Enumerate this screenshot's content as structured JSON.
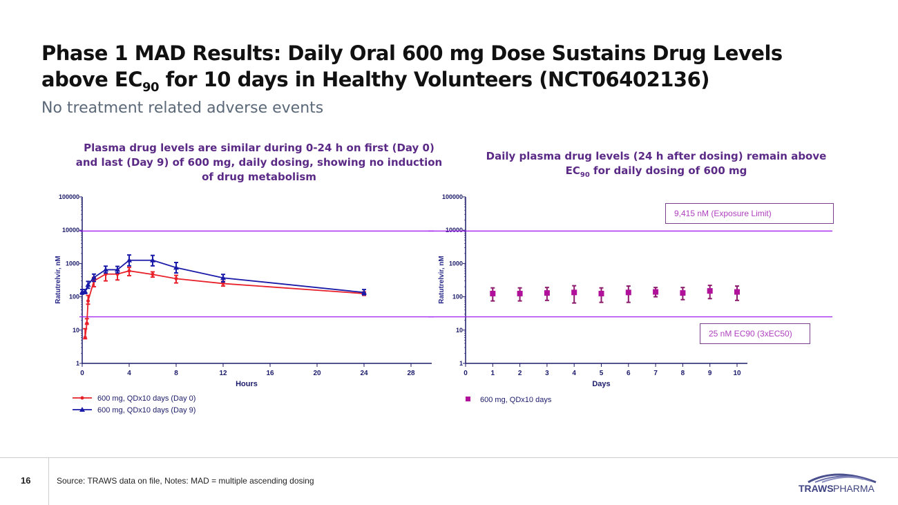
{
  "title_line1": "Phase 1 MAD Results: Daily Oral 600 mg Dose Sustains Drug Levels",
  "title_line2_a": "above EC",
  "title_line2_sub": "90",
  "title_line2_b": " for 10 days in Healthy Volunteers (NCT06402136)",
  "subtitle": "No treatment related adverse events",
  "footer": {
    "page": "16",
    "source": "Source: TRAWS data on file, Notes: MAD = multiple ascending dosing",
    "logo": "TRAWS PHARMA"
  },
  "colors": {
    "ref_line": "#a020f0",
    "day0": "#e8202a",
    "day9": "#1a1aa8",
    "daily": "#b0109a",
    "title": "#5b2a86"
  },
  "chart_data": [
    {
      "type": "line",
      "title": "Plasma drug levels are similar during 0-24 h on first (Day 0) and last (Day 9) of 600 mg, daily dosing, showing no induction of drug metabolism",
      "xlabel": "Hours",
      "ylabel": "Ratutrelvir, nM",
      "yscale": "log",
      "ylim": [
        1,
        100000
      ],
      "xlim": [
        0,
        28
      ],
      "xticks": [
        0,
        4,
        8,
        12,
        16,
        20,
        24,
        28
      ],
      "yticks": [
        1,
        10,
        100,
        1000,
        10000,
        100000
      ],
      "ref_lines": [
        9415,
        25
      ],
      "legend": "bottom-left",
      "series": [
        {
          "name": "600 mg, QDx10 days (Day 0)",
          "marker": "circle",
          "x": [
            0.25,
            0.4,
            0.5,
            1,
            2,
            3,
            4,
            6,
            8,
            12,
            24
          ],
          "y": [
            6,
            16,
            75,
            300,
            480,
            480,
            600,
            470,
            350,
            250,
            125
          ],
          "err_low": [
            5.5,
            15,
            60,
            200,
            300,
            320,
            430,
            390,
            260,
            210,
            110
          ],
          "err_high": [
            11,
            22,
            110,
            380,
            600,
            620,
            760,
            560,
            440,
            290,
            140
          ]
        },
        {
          "name": "600 mg, QDx10 days (Day 9)",
          "marker": "triangle",
          "x": [
            0,
            0.25,
            0.5,
            1,
            2,
            3,
            4,
            6,
            8,
            12,
            24
          ],
          "y": [
            140,
            145,
            230,
            380,
            650,
            650,
            1250,
            1250,
            750,
            370,
            135
          ],
          "err_low": [
            120,
            125,
            180,
            290,
            520,
            520,
            850,
            850,
            520,
            280,
            115
          ],
          "err_high": [
            165,
            165,
            290,
            480,
            830,
            820,
            1800,
            1750,
            1070,
            470,
            165
          ]
        }
      ]
    },
    {
      "type": "scatter",
      "title_a": "Daily plasma drug levels (24 h after dosing) remain above EC",
      "title_sub": "90",
      "title_b": " for daily dosing of 600 mg",
      "xlabel": "Days",
      "ylabel": "Ratutrelvir, nM",
      "yscale": "log",
      "ylim": [
        1,
        100000
      ],
      "xlim": [
        0,
        10
      ],
      "xticks": [
        0,
        1,
        2,
        3,
        4,
        5,
        6,
        7,
        8,
        9,
        10
      ],
      "yticks": [
        1,
        10,
        100,
        1000,
        10000,
        100000
      ],
      "ref_lines": [
        9415,
        25
      ],
      "annotations": [
        "9,415 nM (Exposure Limit)",
        "25 nM EC90 (3xEC50)"
      ],
      "legend": "bottom-left",
      "series": [
        {
          "name": "600 mg, QDx10 days",
          "marker": "square",
          "x": [
            1,
            2,
            3,
            4,
            5,
            6,
            7,
            8,
            9,
            10
          ],
          "y": [
            125,
            125,
            130,
            135,
            125,
            135,
            140,
            130,
            150,
            140
          ],
          "err_low": [
            75,
            75,
            78,
            65,
            68,
            68,
            100,
            82,
            88,
            78
          ],
          "err_high": [
            185,
            185,
            190,
            215,
            185,
            210,
            190,
            190,
            220,
            210
          ]
        }
      ]
    }
  ]
}
